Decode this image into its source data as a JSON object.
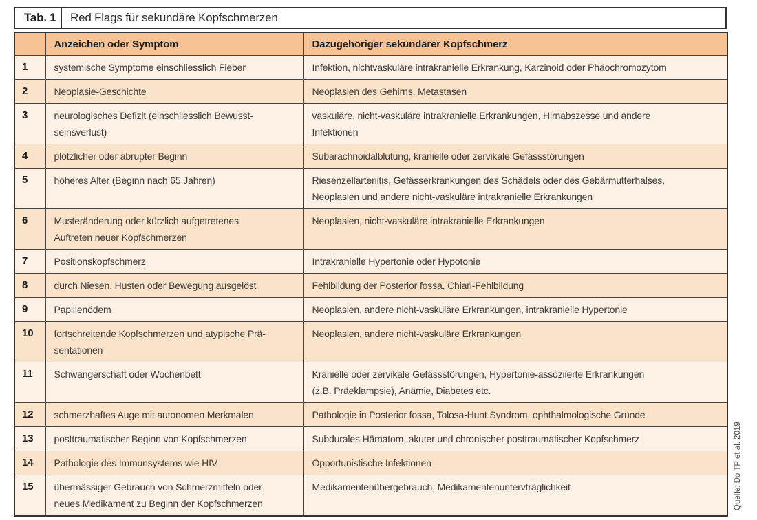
{
  "table": {
    "label": "Tab. 1",
    "title": "Red Flags für sekundäre Kopfschmerzen",
    "columns": {
      "symptom": "Anzeichen oder Symptom",
      "headache": "Dazugehöriger sekundärer Kopfschmerz"
    },
    "rows": [
      {
        "num": "1",
        "symptom": "systemische Symptome einschliesslich Fieber",
        "headache": "Infektion, nichtvaskuläre intrakranielle Erkrankung, Karzinoid oder Phäochromozytom"
      },
      {
        "num": "2",
        "symptom": "Neoplasie-Geschichte",
        "headache": "Neoplasien des Gehirns, Metastasen"
      },
      {
        "num": "3",
        "symptom": "neurologisches Defizit (einschliesslich Bewusst-\nseinsverlust)",
        "headache": "vaskuläre, nicht-vaskuläre intrakranielle Erkrankungen, Hirnabszesse und andere\nInfektionen"
      },
      {
        "num": "4",
        "symptom": "plötzlicher oder abrupter Beginn",
        "headache": "Subarachnoidalblutung, kranielle oder zervikale Gefässstörungen"
      },
      {
        "num": "5",
        "symptom": "höheres Alter (Beginn nach 65 Jahren)",
        "headache": "Riesenzellarteriitis, Gefässerkrankungen des Schädels oder des Gebärmutterhalses,\nNeoplasien und andere nicht-vaskuläre intrakranielle Erkrankungen"
      },
      {
        "num": "6",
        "symptom": "Musteränderung oder kürzlich aufgetretenes\nAuftreten neuer Kopfschmerzen",
        "headache": "Neoplasien, nicht-vaskuläre intrakranielle Erkrankungen"
      },
      {
        "num": "7",
        "symptom": "Positionskopfschmerz",
        "headache": "Intrakranielle Hypertonie oder Hypotonie"
      },
      {
        "num": "8",
        "symptom": "durch Niesen, Husten oder Bewegung ausgelöst",
        "headache": "Fehlbildung der Posterior fossa, Chiari-Fehlbildung"
      },
      {
        "num": "9",
        "symptom": "Papillenödem",
        "headache": "Neoplasien, andere nicht-vaskuläre Erkrankungen, intrakranielle Hypertonie"
      },
      {
        "num": "10",
        "symptom": "fortschreitende Kopfschmerzen und atypische Prä-\nsentationen",
        "headache": "Neoplasien, andere nicht-vaskuläre Erkrankungen"
      },
      {
        "num": "11",
        "symptom": "Schwangerschaft oder Wochenbett",
        "headache": "Kranielle oder zervikale Gefässstörungen, Hypertonie-assoziierte Erkrankungen\n(z.B. Präeklampsie), Anämie, Diabetes etc."
      },
      {
        "num": "12",
        "symptom": "schmerzhaftes Auge mit autonomen Merkmalen",
        "headache": "Pathologie in Posterior fossa, Tolosa-Hunt Syndrom, ophthalmologische Gründe"
      },
      {
        "num": "13",
        "symptom": "posttraumatischer Beginn von Kopfschmerzen",
        "headache": "Subdurales Hämatom, akuter und chronischer posttraumatischer Kopfschmerz"
      },
      {
        "num": "14",
        "symptom": "Pathologie des Immunsystems wie HIV",
        "headache": "Opportunistische Infektionen"
      },
      {
        "num": "15",
        "symptom": "übermässiger Gebrauch von Schmerzmitteln oder\nneues Medikament zu Beginn der Kopfschmerzen",
        "headache": "Medikamentenübergebrauch, Medikamentenuntervträglichkeit"
      }
    ],
    "source": "Quelle: Do TP et al. 2019"
  },
  "colors": {
    "header_bg": "#f7c294",
    "row_light_bg": "#fdf0e4",
    "row_dark_bg": "#fbe3c9",
    "border": "#343434"
  }
}
